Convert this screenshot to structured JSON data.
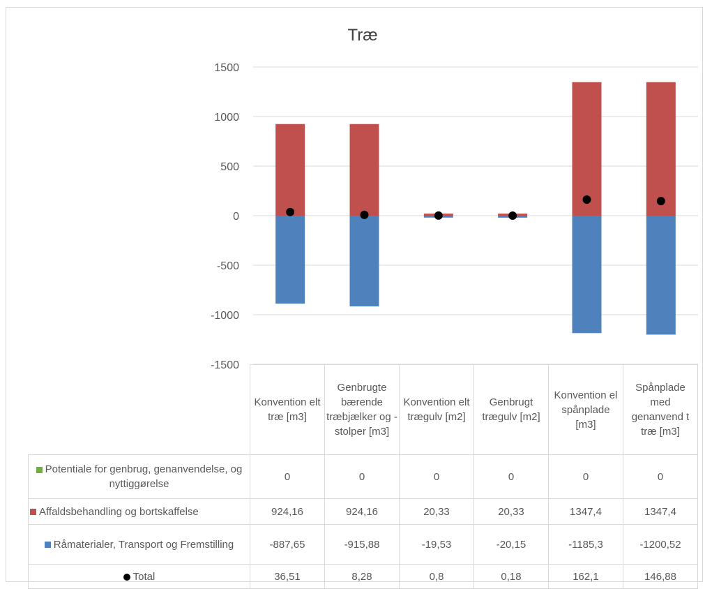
{
  "chart_data": {
    "type": "bar",
    "stacked": true,
    "title": "Træ",
    "ylim": [
      -1500,
      1500
    ],
    "yticks": [
      "1500",
      "1000",
      "500",
      "0",
      "-500",
      "-1000",
      "-1500"
    ],
    "grid": true,
    "categories": [
      "Konvention elt træ [m3]",
      "Genbrugte bærende træbjælker og -stolper [m3]",
      "Konvention elt trægulv [m2]",
      "Genbrugt trægulv [m2]",
      "Konvention el spånplade [m3]",
      "Spånplade med genanvend t træ [m3]"
    ],
    "series": [
      {
        "name": "Potentiale for genbrug, genanvendelse, og nyttiggørelse",
        "color": "#70ad47",
        "values": [
          0,
          0,
          0,
          0,
          0,
          0
        ],
        "labels": [
          "0",
          "0",
          "0",
          "0",
          "0",
          "0"
        ]
      },
      {
        "name": "Affaldsbehandling og bortskaffelse",
        "color": "#c0504d",
        "values": [
          924.16,
          924.16,
          20.33,
          20.33,
          1347.4,
          1347.4
        ],
        "labels": [
          "924,16",
          "924,16",
          "20,33",
          "20,33",
          "1347,4",
          "1347,4"
        ]
      },
      {
        "name": "Råmaterialer, Transport og Fremstilling",
        "color": "#4f81bd",
        "values": [
          -887.65,
          -915.88,
          -19.53,
          -20.15,
          -1185.3,
          -1200.52
        ],
        "labels": [
          "-887,65",
          "-915,88",
          "-19,53",
          "-20,15",
          "-1185,3",
          "-1200,52"
        ]
      },
      {
        "name": "Total",
        "marker": "dot",
        "color": "#000000",
        "values": [
          36.51,
          8.28,
          0.8,
          0.18,
          162.1,
          146.88
        ],
        "labels": [
          "36,51",
          "8,28",
          "0,8",
          "0,18",
          "162,1",
          "146,88"
        ]
      }
    ]
  }
}
